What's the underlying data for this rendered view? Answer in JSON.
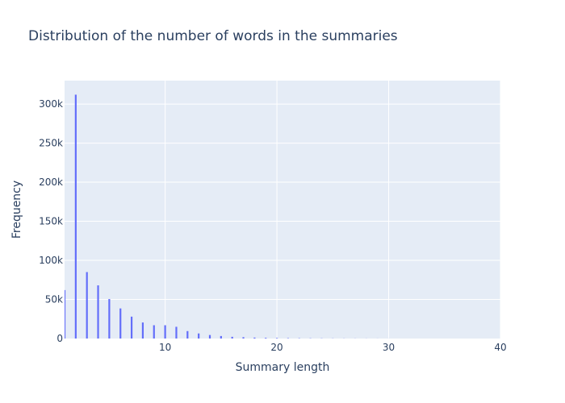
{
  "chart_data": {
    "type": "bar",
    "title": "Distribution of the number of words in the summaries",
    "xlabel": "Summary length",
    "ylabel": "Frequency",
    "xlim": [
      1,
      40
    ],
    "ylim": [
      0,
      330000
    ],
    "x_ticks": [
      10,
      20,
      30,
      40
    ],
    "y_ticks": [
      0,
      50000,
      100000,
      150000,
      200000,
      250000,
      300000
    ],
    "y_tick_labels": [
      "0",
      "50k",
      "100k",
      "150k",
      "200k",
      "250k",
      "300k"
    ],
    "grid": true,
    "legend": "none",
    "bar_color": "#636efa",
    "plot_bgcolor": "#e5ecf6",
    "x": [
      1,
      2,
      3,
      4,
      5,
      6,
      7,
      8,
      9,
      10,
      11,
      12,
      13,
      14,
      15,
      16,
      17,
      18,
      19,
      20,
      21,
      22,
      23,
      24,
      25,
      26,
      27,
      28,
      29,
      30
    ],
    "values": [
      62000,
      312000,
      85000,
      68000,
      50500,
      38500,
      28000,
      20500,
      17000,
      17000,
      15000,
      9500,
      6500,
      4500,
      3200,
      2200,
      1700,
      1200,
      900,
      700,
      500,
      400,
      300,
      250,
      200,
      150,
      120,
      100,
      80,
      60
    ]
  }
}
